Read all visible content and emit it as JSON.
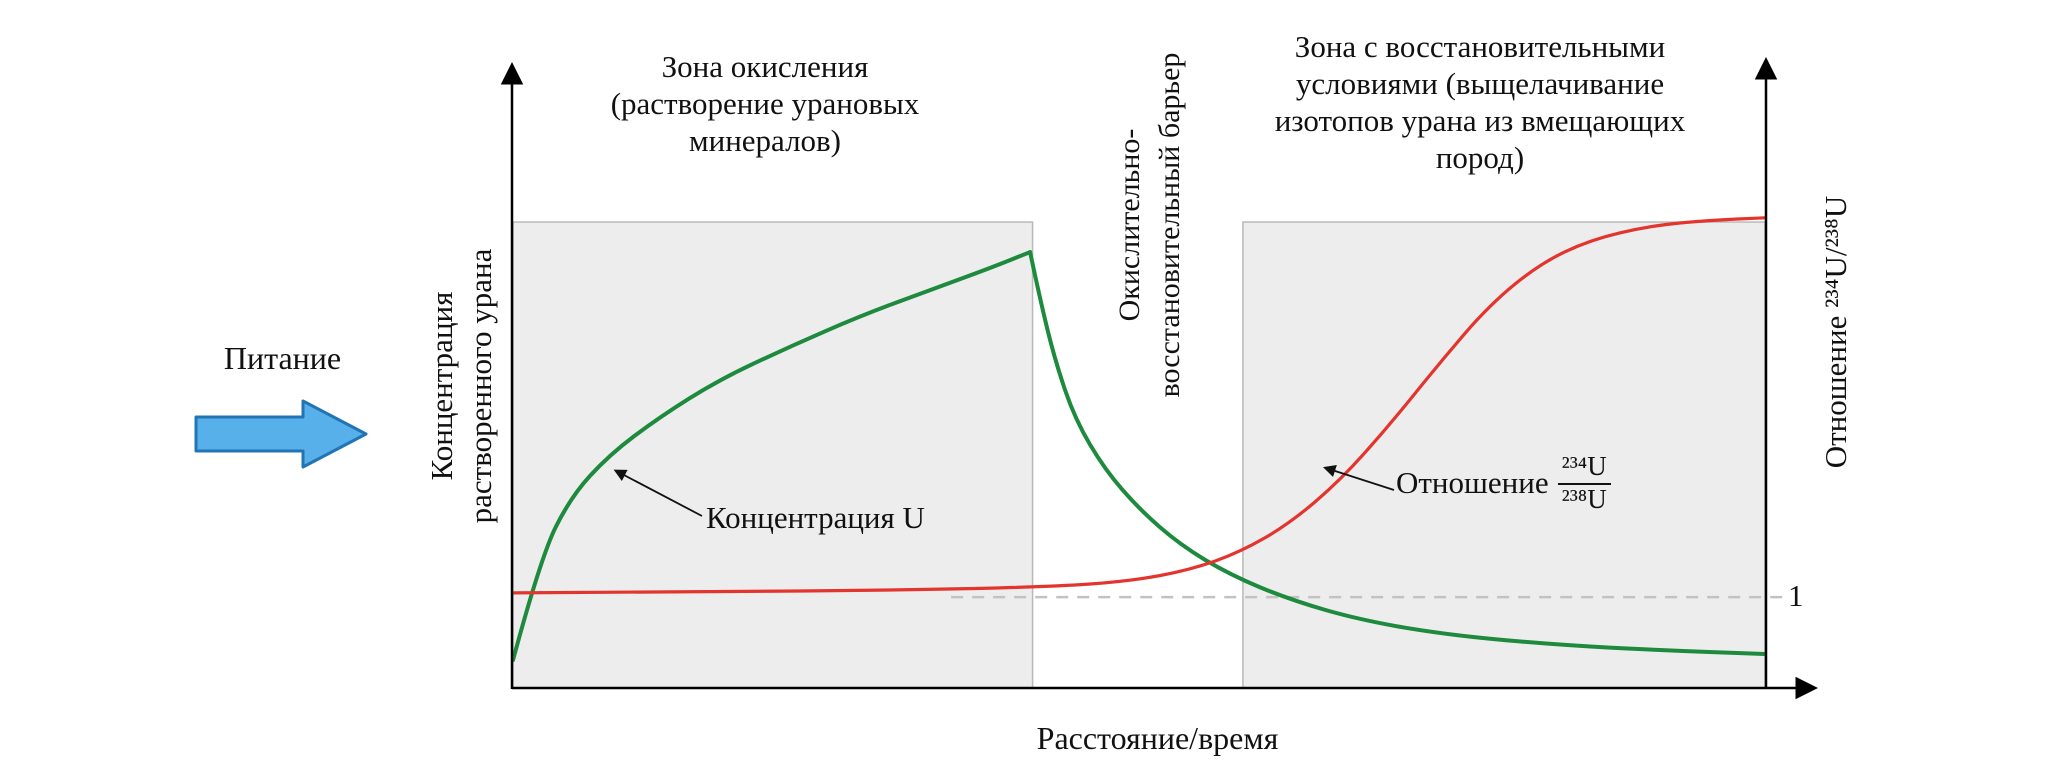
{
  "figure": {
    "feed_label": "Питание",
    "x_axis_label": "Расстояние/время",
    "left_axis_label_lines": [
      "Концентрация",
      "растворенного урана"
    ],
    "right_axis_label": "Отношение ²³⁴U/²³⁸U",
    "reference_line_label": "1",
    "zone1_title_lines": [
      "Зона окисления",
      "(растворение урановых",
      "минералов)"
    ],
    "barrier_label_lines": [
      "Окислительно-",
      "восстановительный барьер"
    ],
    "zone2_title_lines": [
      "Зона с восстановительными",
      "условиями (выщелачивание",
      "изотопов урана из вмещающих",
      "пород)"
    ],
    "annotation_concentration": "Концентрация U",
    "annotation_ratio_prefix": "Отношение",
    "annotation_ratio_numerator": "²³⁴U",
    "annotation_ratio_denominator": "²³⁸U",
    "colors": {
      "concentration_curve": "#1d8a3d",
      "ratio_curve": "#e3342e",
      "zone_fill": "#ededed",
      "zone_border": "#b9b9b9",
      "reference_dash": "#c2c2c2",
      "feed_arrow_fill": "#58b0ea",
      "feed_arrow_border": "#2274b4",
      "axis": "#000000"
    }
  },
  "chart_data": {
    "type": "line",
    "title": "",
    "xlabel": "Расстояние/время",
    "ylabel_left": "Концентрация растворенного урана",
    "ylabel_right": "Отношение ²³⁴U/²³⁸U",
    "x_units": "relative distance/time, percent of plotted range",
    "y_units": "relative axis fraction (0 = baseline, 1 = axis top)",
    "grid": false,
    "legend_position": "inline-annotations",
    "zone_top_fraction": 0.985,
    "zones": [
      {
        "label": "Зона окисления (растворение урановых минералов)",
        "x_start_percent": 0,
        "x_end_percent": 41.5
      },
      {
        "label": "Зона с восстановительными условиями (выщелачивание изотопов урана из вмещающих пород)",
        "x_start_percent": 58.3,
        "x_end_percent": 100
      }
    ],
    "barrier_label": "Окислительно-восстановительный барьер",
    "reference_line": {
      "label": "1",
      "y_fraction": 0.187,
      "x_start_percent": 35,
      "x_end_percent": 101.5
    },
    "series": [
      {
        "name": "Концентрация U",
        "color": "#1d8a3d",
        "segments": [
          [
            [
              0,
              0.053
            ],
            [
              2.2,
              0.27
            ],
            [
              4.6,
              0.4
            ],
            [
              7.7,
              0.49
            ],
            [
              11.7,
              0.57
            ],
            [
              16.5,
              0.65
            ],
            [
              22.1,
              0.72
            ],
            [
              27.7,
              0.785
            ],
            [
              33.3,
              0.84
            ],
            [
              38.1,
              0.887
            ],
            [
              41.3,
              0.921
            ]
          ],
          [
            [
              41.3,
              0.921
            ],
            [
              42.1,
              0.82
            ],
            [
              43.3,
              0.69
            ],
            [
              44.9,
              0.565
            ],
            [
              47.3,
              0.457
            ],
            [
              50.1,
              0.372
            ],
            [
              53.3,
              0.298
            ],
            [
              57.3,
              0.234
            ],
            [
              62.1,
              0.181
            ],
            [
              67.7,
              0.138
            ],
            [
              74.8,
              0.106
            ],
            [
              83.6,
              0.085
            ],
            [
              91.6,
              0.074
            ],
            [
              100,
              0.066
            ]
          ]
        ]
      },
      {
        "name": "Отношение ²³⁴U/²³⁸U",
        "color": "#e3342e",
        "segments": [
          [
            [
              0,
              0.196
            ],
            [
              14.9,
              0.198
            ],
            [
              30.9,
              0.202
            ],
            [
              42.9,
              0.209
            ],
            [
              49.3,
              0.221
            ],
            [
              54.1,
              0.245
            ],
            [
              58.1,
              0.283
            ],
            [
              62.1,
              0.345
            ],
            [
              66.1,
              0.436
            ],
            [
              70,
              0.553
            ],
            [
              74,
              0.685
            ],
            [
              78,
              0.809
            ],
            [
              82,
              0.896
            ],
            [
              86,
              0.947
            ],
            [
              90.8,
              0.977
            ],
            [
              95.6,
              0.989
            ],
            [
              100,
              0.994
            ]
          ]
        ]
      }
    ]
  }
}
